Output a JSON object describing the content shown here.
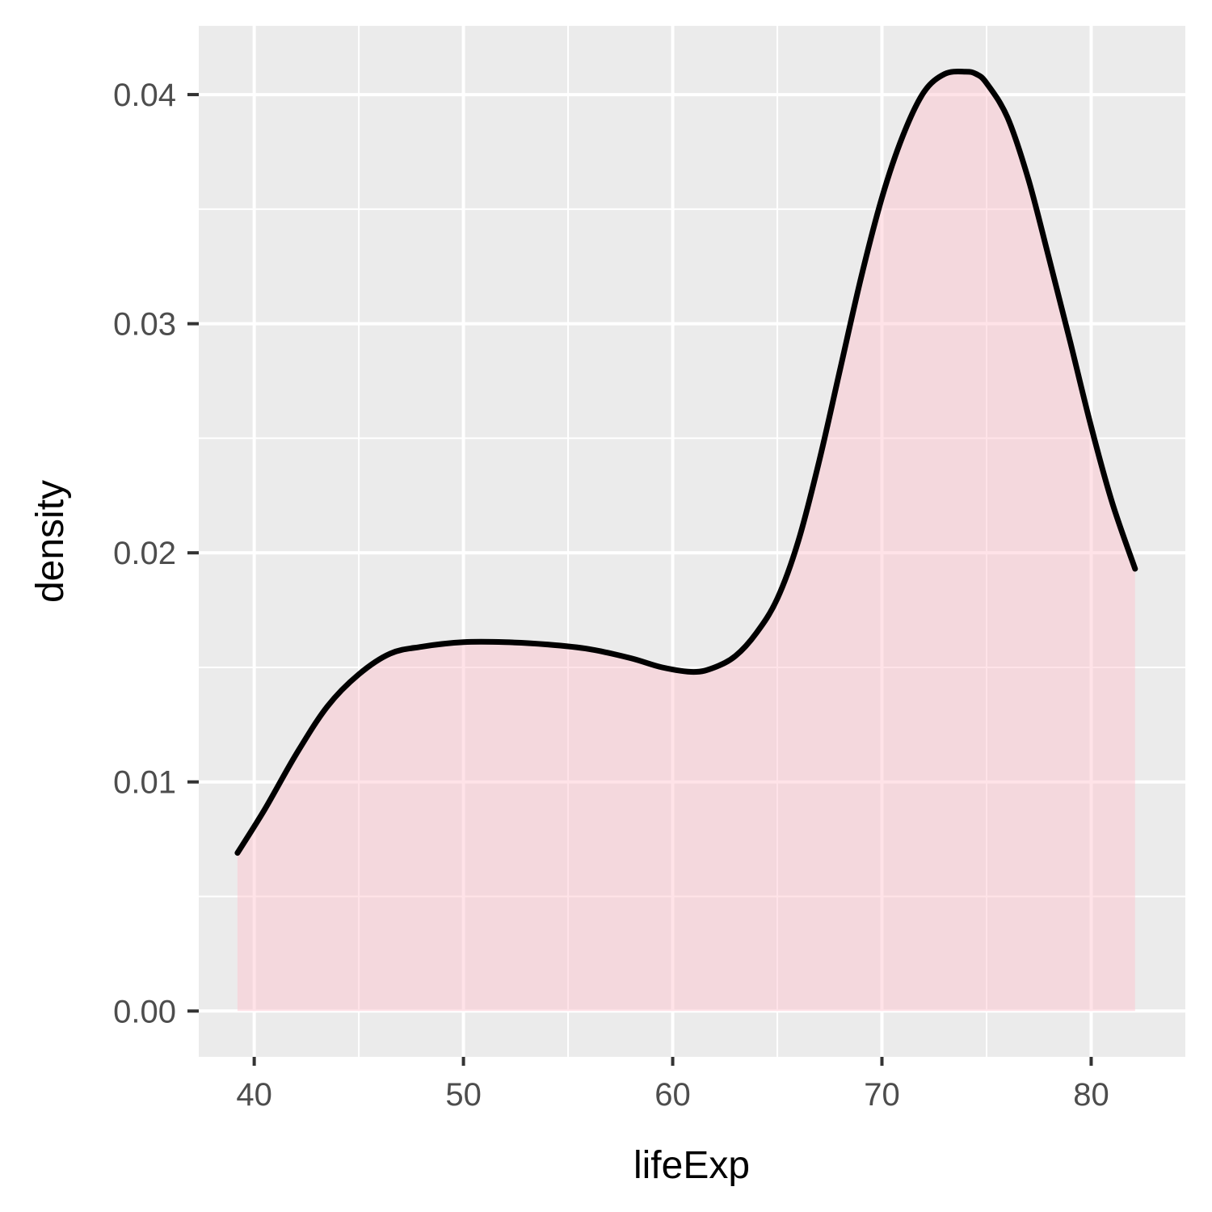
{
  "chart_data": {
    "type": "area",
    "title": "",
    "xlabel": "lifeExp",
    "ylabel": "density",
    "xlim": [
      37.35,
      84.5
    ],
    "ylim": [
      -0.002,
      0.043
    ],
    "x_ticks": [
      40,
      50,
      60,
      70,
      80
    ],
    "x_tick_labels": [
      "40",
      "50",
      "60",
      "70",
      "80"
    ],
    "x_minor_ticks": [
      45,
      55,
      65,
      75
    ],
    "y_ticks": [
      0.0,
      0.01,
      0.02,
      0.03,
      0.04
    ],
    "y_tick_labels": [
      "0.00",
      "0.01",
      "0.02",
      "0.03",
      "0.04"
    ],
    "y_minor_ticks": [
      0.005,
      0.015,
      0.025,
      0.035
    ],
    "grid": true,
    "legend": "none",
    "series": [
      {
        "x": [
          39.2,
          40.5,
          42,
          43.5,
          45,
          46.5,
          48,
          50,
          52,
          54,
          56,
          58,
          59.5,
          61,
          62,
          63,
          64,
          65,
          66,
          67,
          68,
          69,
          70,
          71,
          72,
          73,
          74,
          74.5,
          75,
          76,
          77,
          78,
          79,
          80,
          81,
          82.1
        ],
        "y": [
          0.0069,
          0.0088,
          0.0112,
          0.0133,
          0.0147,
          0.0156,
          0.0159,
          0.0161,
          0.0161,
          0.016,
          0.0158,
          0.0154,
          0.015,
          0.0148,
          0.015,
          0.0155,
          0.0165,
          0.018,
          0.0205,
          0.024,
          0.028,
          0.032,
          0.0355,
          0.0382,
          0.0401,
          0.0409,
          0.041,
          0.0409,
          0.0405,
          0.039,
          0.0363,
          0.0328,
          0.0292,
          0.0255,
          0.0222,
          0.0193
        ]
      }
    ],
    "colors": {
      "panel_background": "#ebebeb",
      "grid": "#ffffff",
      "fill": "#ffc0cb",
      "line": "#000000",
      "tick_text": "#4d4d4d",
      "axis_title": "#000000"
    }
  }
}
